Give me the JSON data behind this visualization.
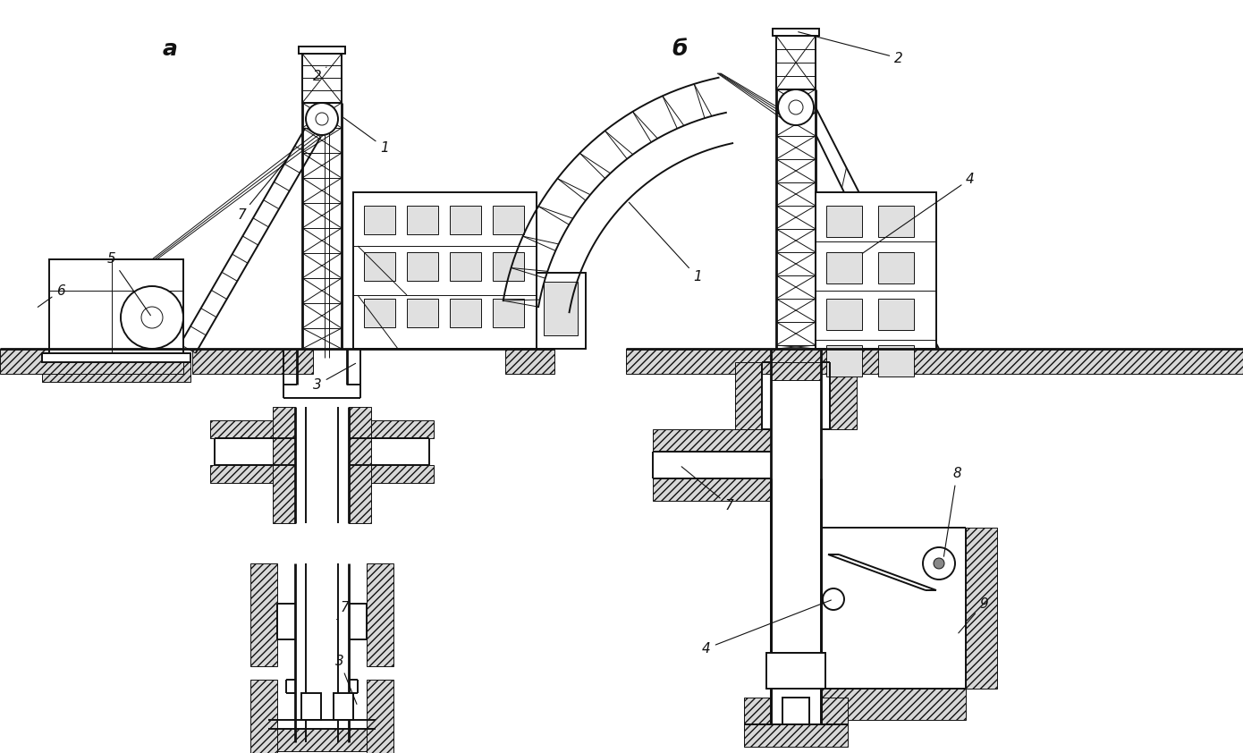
{
  "background_color": "#ffffff",
  "line_color": "#111111",
  "lw_main": 1.4,
  "lw_thin": 0.7,
  "lw_thick": 2.0,
  "fig_w": 13.9,
  "fig_h": 8.42,
  "dpi": 100
}
